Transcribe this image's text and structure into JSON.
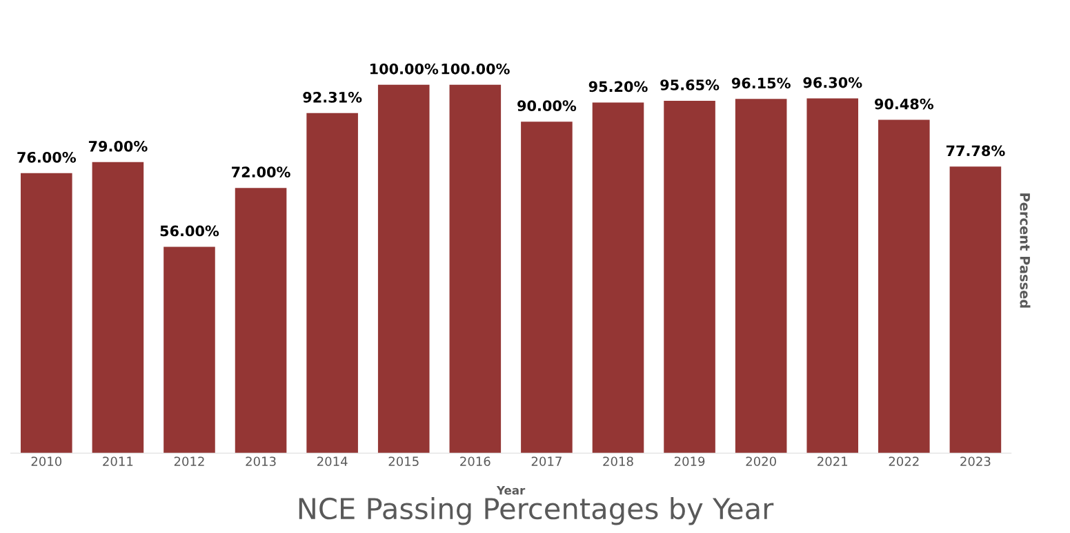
{
  "chart_data": {
    "type": "bar",
    "title": "NCE Passing Percentages by Year",
    "xlabel": "Year",
    "ylabel": "Percent Passed",
    "categories": [
      "2010",
      "2011",
      "2012",
      "2013",
      "2014",
      "2015",
      "2016",
      "2017",
      "2018",
      "2019",
      "2020",
      "2021",
      "2022",
      "2023"
    ],
    "values": [
      76.0,
      79.0,
      56.0,
      72.0,
      92.31,
      100.0,
      100.0,
      90.0,
      95.2,
      95.65,
      96.15,
      96.3,
      90.48,
      77.78
    ],
    "value_labels": [
      "76.00%",
      "79.00%",
      "56.00%",
      "72.00%",
      "92.31%",
      "100.00%",
      "100.00%",
      "90.00%",
      "95.20%",
      "95.65%",
      "96.15%",
      "96.30%",
      "90.48%",
      "77.78%"
    ],
    "color": "#943634",
    "grid": false,
    "legend": false,
    "tick_labels": "x"
  }
}
